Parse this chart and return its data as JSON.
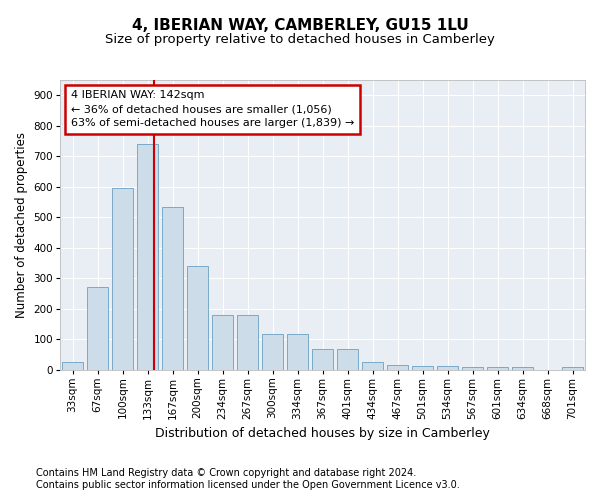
{
  "title": "4, IBERIAN WAY, CAMBERLEY, GU15 1LU",
  "subtitle": "Size of property relative to detached houses in Camberley",
  "xlabel": "Distribution of detached houses by size in Camberley",
  "ylabel": "Number of detached properties",
  "bar_labels": [
    "33sqm",
    "67sqm",
    "100sqm",
    "133sqm",
    "167sqm",
    "200sqm",
    "234sqm",
    "267sqm",
    "300sqm",
    "334sqm",
    "367sqm",
    "401sqm",
    "434sqm",
    "467sqm",
    "501sqm",
    "534sqm",
    "567sqm",
    "601sqm",
    "634sqm",
    "668sqm",
    "701sqm"
  ],
  "bar_values": [
    25,
    270,
    595,
    740,
    535,
    340,
    178,
    178,
    118,
    118,
    68,
    68,
    25,
    15,
    12,
    12,
    8,
    8,
    7,
    0,
    7
  ],
  "bar_color": "#ccdce8",
  "bar_edge_color": "#7aaac8",
  "annotation_text": "4 IBERIAN WAY: 142sqm\n← 36% of detached houses are smaller (1,056)\n63% of semi-detached houses are larger (1,839) →",
  "annotation_box_facecolor": "#ffffff",
  "annotation_box_edgecolor": "#cc0000",
  "vline_color": "#cc0000",
  "vline_x_index": 3,
  "ylim": [
    0,
    950
  ],
  "yticks": [
    0,
    100,
    200,
    300,
    400,
    500,
    600,
    700,
    800,
    900
  ],
  "bg_color": "#e8eef4",
  "grid_color": "#ffffff",
  "fig_bg_color": "#ffffff",
  "title_fontsize": 11,
  "subtitle_fontsize": 9.5,
  "xlabel_fontsize": 9,
  "ylabel_fontsize": 8.5,
  "tick_fontsize": 7.5,
  "annot_fontsize": 8,
  "footer_fontsize": 7,
  "footer1": "Contains HM Land Registry data © Crown copyright and database right 2024.",
  "footer2": "Contains public sector information licensed under the Open Government Licence v3.0."
}
